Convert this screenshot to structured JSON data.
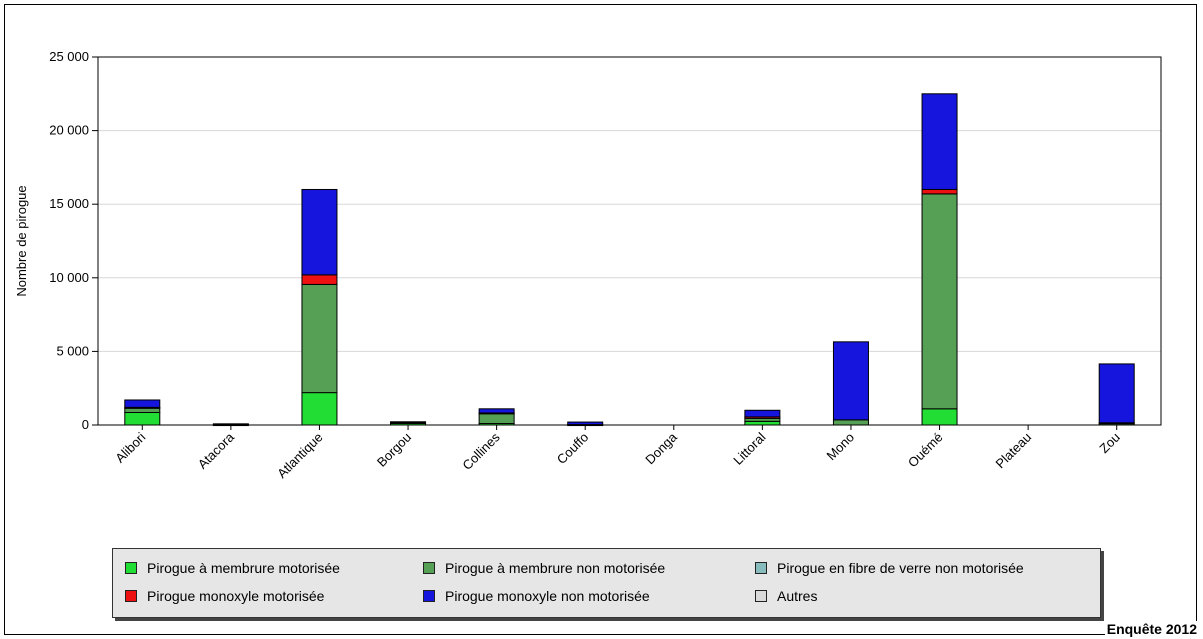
{
  "chart_data": {
    "type": "bar",
    "stacked": true,
    "ylabel": "Nombre de pirogue",
    "xlabel": "",
    "ylim": [
      0,
      25000
    ],
    "yticks": [
      0,
      5000,
      10000,
      15000,
      20000,
      25000
    ],
    "ytick_labels": [
      "0",
      "5 000",
      "10 000",
      "15 000",
      "20 000",
      "25 000"
    ],
    "grid": true,
    "legend_position": "bottom",
    "categories": [
      "Alibori",
      "Atacora",
      "Atlantique",
      "Borgou",
      "Collines",
      "Couffo",
      "Donga",
      "Littoral",
      "Mono",
      "Ouémé",
      "Plateau",
      "Zou"
    ],
    "series": [
      {
        "name": "Pirogue à membrure motorisée",
        "color": "#22dd33",
        "values": [
          850,
          0,
          2200,
          100,
          100,
          0,
          0,
          250,
          0,
          1100,
          0,
          0
        ]
      },
      {
        "name": "Pirogue à membrure non motorisée",
        "color": "#55a055",
        "values": [
          300,
          30,
          7350,
          100,
          700,
          30,
          0,
          200,
          350,
          14600,
          0,
          100
        ]
      },
      {
        "name": "Pirogue en fibre de verre non motorisée",
        "color": "#88bbbb",
        "values": [
          0,
          0,
          0,
          0,
          0,
          0,
          0,
          0,
          0,
          0,
          0,
          0
        ]
      },
      {
        "name": "Pirogue monoxyle motorisée",
        "color": "#ee1111",
        "values": [
          50,
          0,
          650,
          0,
          20,
          0,
          0,
          100,
          0,
          300,
          0,
          50
        ]
      },
      {
        "name": "Pirogue monoxyle non motorisée",
        "color": "#1515dd",
        "values": [
          500,
          50,
          5800,
          20,
          280,
          170,
          0,
          450,
          5300,
          6500,
          0,
          4000
        ]
      },
      {
        "name": "Autres",
        "color": "#d9d9d9",
        "values": [
          0,
          0,
          0,
          0,
          0,
          0,
          0,
          0,
          0,
          0,
          0,
          0
        ]
      }
    ]
  },
  "footer": {
    "survey": "Enquête 2012"
  },
  "legend": {
    "items": [
      {
        "label": "Pirogue à membrure motorisée",
        "color": "#22dd33"
      },
      {
        "label": "Pirogue à membrure non motorisée",
        "color": "#55a055"
      },
      {
        "label": "Pirogue en fibre de verre non motorisée",
        "color": "#88bbbb"
      },
      {
        "label": "Pirogue monoxyle motorisée",
        "color": "#ee1111"
      },
      {
        "label": "Pirogue monoxyle non motorisée",
        "color": "#1515dd"
      },
      {
        "label": "Autres",
        "color": "#d9d9d9"
      }
    ]
  }
}
